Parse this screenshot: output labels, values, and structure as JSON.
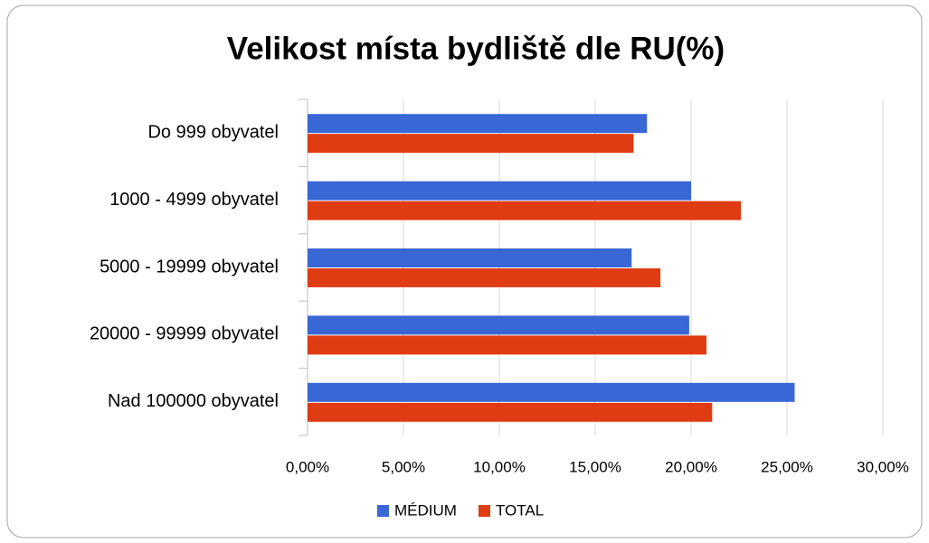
{
  "chart_data": {
    "type": "hbar",
    "title": "Velikost místa bydliště dle RU(%)",
    "categories": [
      "Do 999 obyvatel",
      "1000 - 4999 obyvatel",
      "5000 - 19999 obyvatel",
      "20000 - 99999 obyvatel",
      "Nad 100000 obyvatel"
    ],
    "series": [
      {
        "name": "MÉDIUM",
        "color": "#3a67d6",
        "values": [
          17.7,
          20.0,
          16.9,
          19.9,
          25.4
        ]
      },
      {
        "name": "TOTAL",
        "color": "#e03c14",
        "values": [
          17.0,
          22.6,
          18.4,
          20.8,
          21.1
        ]
      }
    ],
    "xlim": [
      0,
      30
    ],
    "xticks": [
      {
        "value": 0,
        "label": "0,00%"
      },
      {
        "value": 5,
        "label": "5,00%"
      },
      {
        "value": 10,
        "label": "10,00%"
      },
      {
        "value": 15,
        "label": "15,00%"
      },
      {
        "value": 20,
        "label": "20,00%"
      },
      {
        "value": 25,
        "label": "25,00%"
      },
      {
        "value": 30,
        "label": "30,00%"
      }
    ],
    "grid": true,
    "legend": "bottom"
  }
}
